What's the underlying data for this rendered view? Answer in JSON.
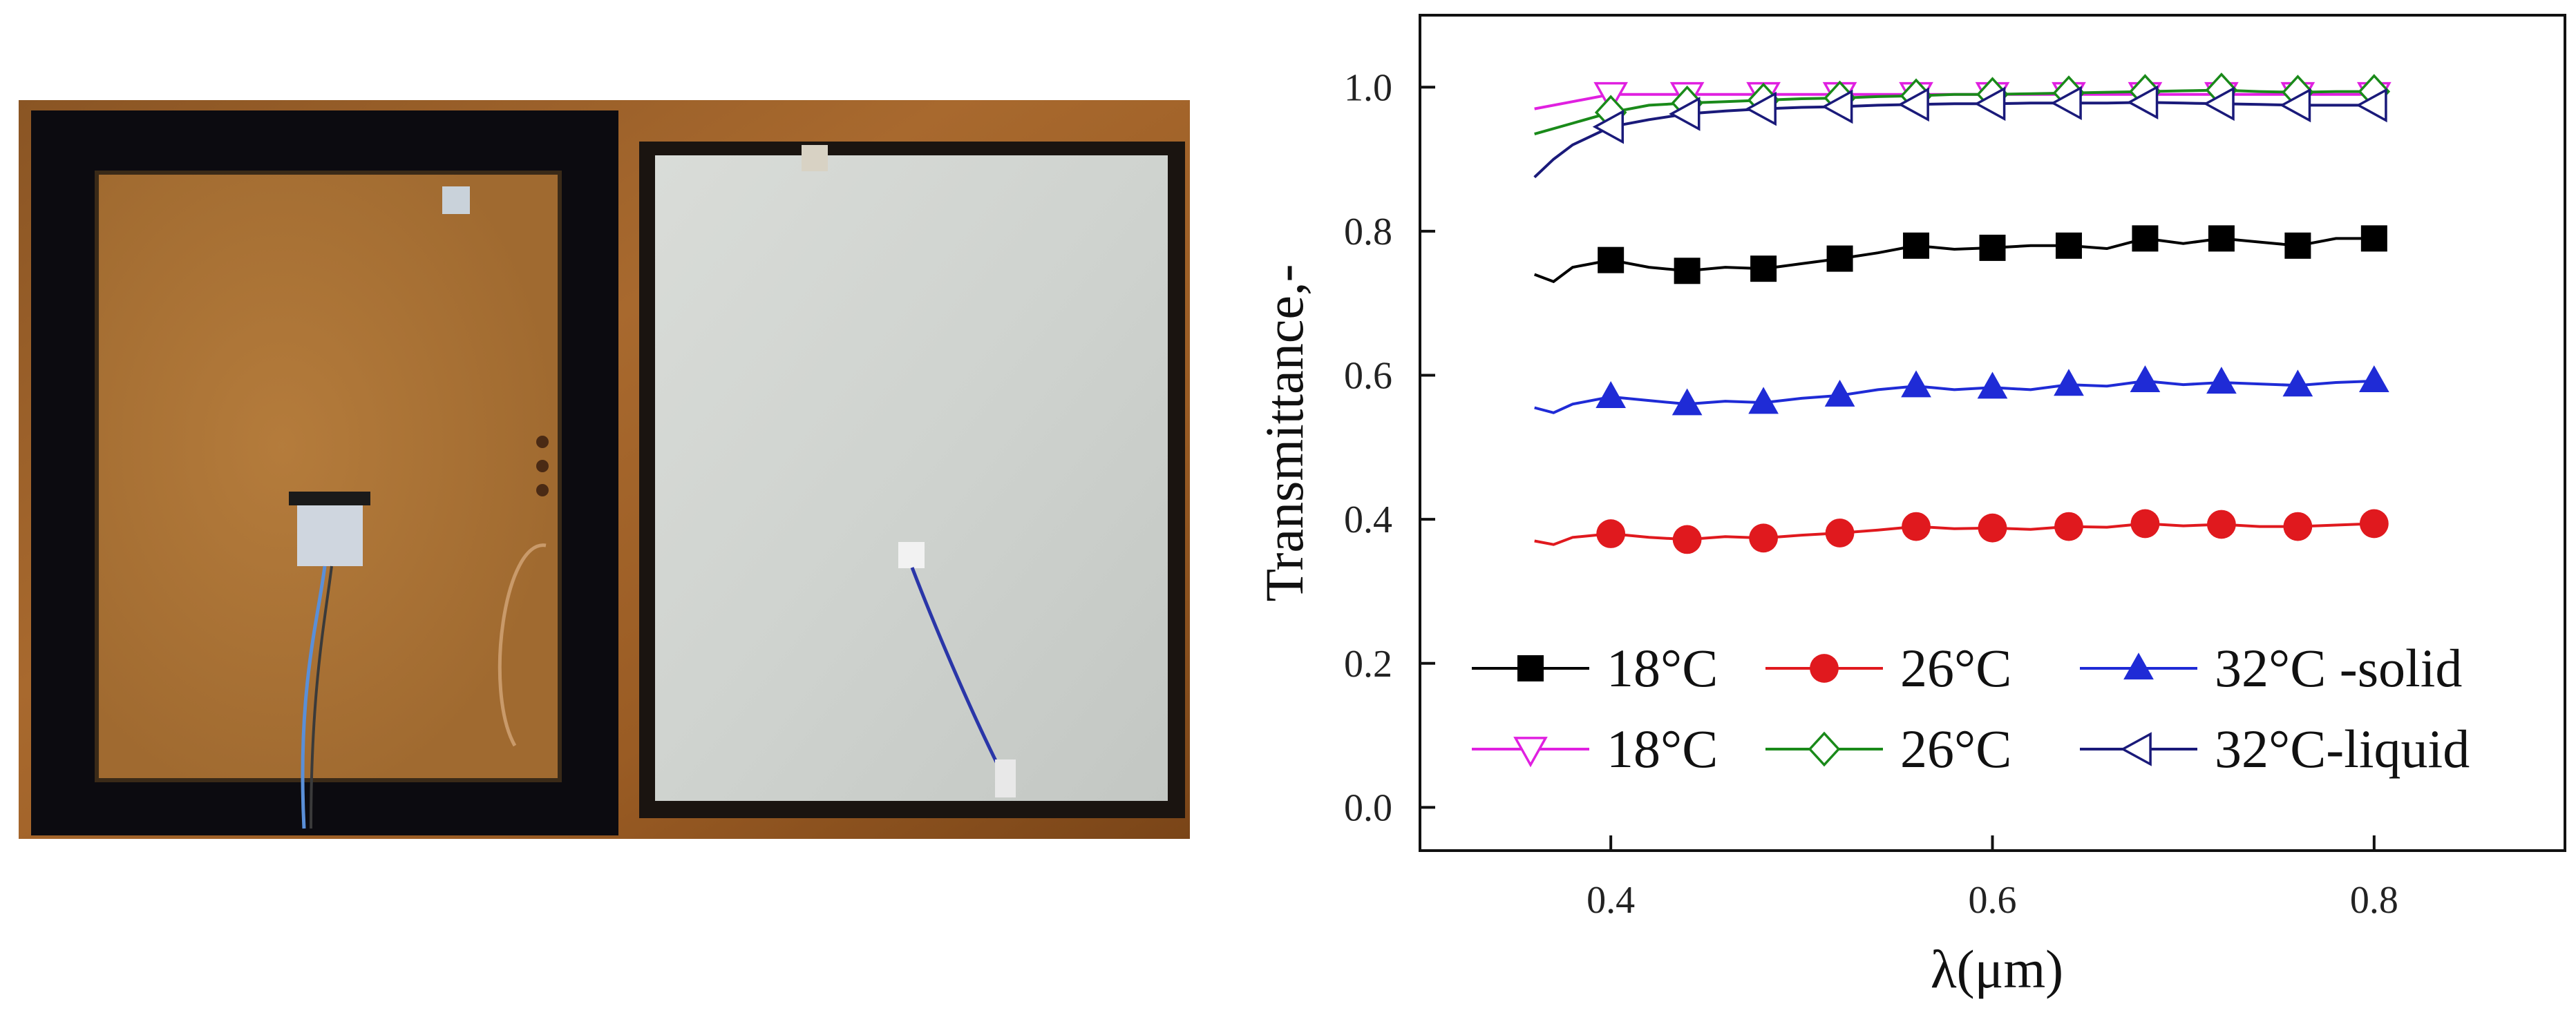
{
  "photo_panel": {
    "left_sample": "opaque composite panel (liquid PCM, wood backing visible)",
    "right_sample": "translucent white panel (solid PCM)"
  },
  "chart_data": {
    "type": "line",
    "xlabel": "λ(μm)",
    "ylabel": "Transmittance,-",
    "xlim": [
      0.3,
      0.9
    ],
    "ylim": [
      -0.06,
      1.1
    ],
    "x_ticks": [
      0.4,
      0.6,
      0.8
    ],
    "x_tick_labels": [
      "0.4",
      "0.6",
      "0.8"
    ],
    "y_ticks": [
      0.0,
      0.2,
      0.4,
      0.6,
      0.8,
      1.0
    ],
    "y_tick_labels": [
      "0.0",
      "0.2",
      "0.4",
      "0.6",
      "0.8",
      "1.0"
    ],
    "grid": false,
    "legend_placement": "lower-left",
    "series": [
      {
        "name": "18°C",
        "color": "#000000",
        "marker": "filled-square",
        "x": [
          0.36,
          0.37,
          0.38,
          0.4,
          0.42,
          0.44,
          0.46,
          0.48,
          0.5,
          0.52,
          0.54,
          0.56,
          0.58,
          0.6,
          0.62,
          0.64,
          0.66,
          0.68,
          0.7,
          0.72,
          0.74,
          0.76,
          0.78,
          0.8
        ],
        "y": [
          0.74,
          0.73,
          0.75,
          0.76,
          0.75,
          0.745,
          0.75,
          0.748,
          0.755,
          0.762,
          0.77,
          0.78,
          0.775,
          0.777,
          0.78,
          0.78,
          0.776,
          0.79,
          0.783,
          0.79,
          0.785,
          0.78,
          0.79,
          0.79
        ],
        "marker_x": [
          0.4,
          0.44,
          0.48,
          0.52,
          0.56,
          0.6,
          0.64,
          0.68,
          0.72,
          0.76,
          0.8
        ],
        "marker_y": [
          0.76,
          0.745,
          0.748,
          0.762,
          0.78,
          0.777,
          0.78,
          0.79,
          0.79,
          0.78,
          0.79
        ]
      },
      {
        "name": "26°C",
        "color": "#e0191e",
        "marker": "filled-circle",
        "x": [
          0.36,
          0.37,
          0.38,
          0.4,
          0.42,
          0.44,
          0.46,
          0.48,
          0.5,
          0.52,
          0.54,
          0.56,
          0.58,
          0.6,
          0.62,
          0.64,
          0.66,
          0.68,
          0.7,
          0.72,
          0.74,
          0.76,
          0.78,
          0.8
        ],
        "y": [
          0.37,
          0.365,
          0.375,
          0.38,
          0.375,
          0.372,
          0.376,
          0.374,
          0.378,
          0.381,
          0.385,
          0.39,
          0.387,
          0.388,
          0.386,
          0.39,
          0.389,
          0.394,
          0.391,
          0.393,
          0.39,
          0.39,
          0.392,
          0.394
        ],
        "marker_x": [
          0.4,
          0.44,
          0.48,
          0.52,
          0.56,
          0.6,
          0.64,
          0.68,
          0.72,
          0.76,
          0.8
        ],
        "marker_y": [
          0.38,
          0.372,
          0.374,
          0.381,
          0.39,
          0.388,
          0.39,
          0.394,
          0.393,
          0.39,
          0.394
        ]
      },
      {
        "name": "32°C -solid",
        "color": "#1f2bd6",
        "marker": "filled-triangle-up",
        "x": [
          0.36,
          0.37,
          0.38,
          0.4,
          0.42,
          0.44,
          0.46,
          0.48,
          0.5,
          0.52,
          0.54,
          0.56,
          0.58,
          0.6,
          0.62,
          0.64,
          0.66,
          0.68,
          0.7,
          0.72,
          0.74,
          0.76,
          0.78,
          0.8
        ],
        "y": [
          0.555,
          0.548,
          0.56,
          0.57,
          0.565,
          0.56,
          0.564,
          0.562,
          0.568,
          0.572,
          0.58,
          0.585,
          0.58,
          0.583,
          0.58,
          0.587,
          0.585,
          0.592,
          0.587,
          0.59,
          0.588,
          0.586,
          0.59,
          0.592
        ],
        "marker_x": [
          0.4,
          0.44,
          0.48,
          0.52,
          0.56,
          0.6,
          0.64,
          0.68,
          0.72,
          0.76,
          0.8
        ],
        "marker_y": [
          0.57,
          0.56,
          0.562,
          0.572,
          0.585,
          0.583,
          0.587,
          0.592,
          0.59,
          0.586,
          0.592
        ]
      },
      {
        "name": "18°C",
        "color": "#e020e0",
        "marker": "open-triangle-down",
        "x": [
          0.36,
          0.38,
          0.4,
          0.42,
          0.44,
          0.46,
          0.48,
          0.5,
          0.52,
          0.54,
          0.56,
          0.58,
          0.6,
          0.62,
          0.64,
          0.66,
          0.68,
          0.7,
          0.72,
          0.74,
          0.76,
          0.78,
          0.8
        ],
        "y": [
          0.97,
          0.98,
          0.99,
          0.99,
          0.99,
          0.99,
          0.99,
          0.99,
          0.99,
          0.99,
          0.99,
          0.99,
          0.99,
          0.99,
          0.99,
          0.99,
          0.99,
          0.99,
          0.99,
          0.99,
          0.99,
          0.99,
          0.99
        ],
        "marker_x": [
          0.4,
          0.44,
          0.48,
          0.52,
          0.56,
          0.6,
          0.64,
          0.68,
          0.72,
          0.76,
          0.8
        ],
        "marker_y": [
          0.99,
          0.99,
          0.99,
          0.99,
          0.99,
          0.99,
          0.99,
          0.99,
          0.99,
          0.99,
          0.99
        ]
      },
      {
        "name": "26°C",
        "color": "#1a8a1a",
        "marker": "open-diamond",
        "x": [
          0.36,
          0.38,
          0.4,
          0.42,
          0.44,
          0.46,
          0.48,
          0.5,
          0.52,
          0.54,
          0.56,
          0.58,
          0.6,
          0.62,
          0.64,
          0.66,
          0.68,
          0.7,
          0.72,
          0.74,
          0.76,
          0.78,
          0.8
        ],
        "y": [
          0.935,
          0.95,
          0.965,
          0.975,
          0.978,
          0.98,
          0.982,
          0.984,
          0.985,
          0.987,
          0.988,
          0.99,
          0.99,
          0.991,
          0.992,
          0.993,
          0.994,
          0.995,
          0.996,
          0.994,
          0.993,
          0.994,
          0.994
        ],
        "marker_x": [
          0.4,
          0.44,
          0.48,
          0.52,
          0.56,
          0.6,
          0.64,
          0.68,
          0.72,
          0.76,
          0.8
        ],
        "marker_y": [
          0.965,
          0.978,
          0.982,
          0.985,
          0.988,
          0.99,
          0.992,
          0.994,
          0.996,
          0.993,
          0.994
        ]
      },
      {
        "name": "32°C-liquid",
        "color": "#1a1a7a",
        "marker": "open-triangle-left",
        "x": [
          0.36,
          0.37,
          0.38,
          0.4,
          0.42,
          0.44,
          0.46,
          0.48,
          0.5,
          0.52,
          0.54,
          0.56,
          0.58,
          0.6,
          0.62,
          0.64,
          0.66,
          0.68,
          0.7,
          0.72,
          0.74,
          0.76,
          0.78,
          0.8
        ],
        "y": [
          0.875,
          0.9,
          0.92,
          0.945,
          0.955,
          0.963,
          0.967,
          0.97,
          0.972,
          0.973,
          0.975,
          0.976,
          0.977,
          0.977,
          0.978,
          0.978,
          0.978,
          0.979,
          0.978,
          0.977,
          0.976,
          0.975,
          0.975,
          0.975
        ],
        "marker_x": [
          0.4,
          0.44,
          0.48,
          0.52,
          0.56,
          0.6,
          0.64,
          0.68,
          0.72,
          0.76,
          0.8
        ],
        "marker_y": [
          0.945,
          0.963,
          0.97,
          0.973,
          0.976,
          0.977,
          0.978,
          0.979,
          0.977,
          0.975,
          0.975
        ]
      }
    ]
  }
}
